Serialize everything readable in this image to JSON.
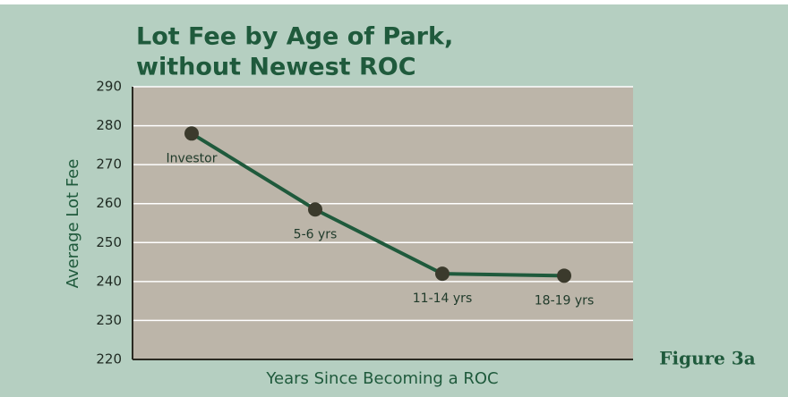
{
  "chart_data": {
    "type": "line",
    "title": [
      "Lot Fee by Age of Park,",
      "without Newest ROC"
    ],
    "x_label": "Years Since Becoming a ROC",
    "y_label": "Average Lot Fee",
    "annotation": "Figure 3a",
    "categories": [
      "Investor",
      "5-6 yrs",
      "11-14 yrs",
      "18-19 yrs"
    ],
    "series": [
      {
        "color": "#1f5a3c",
        "marker_color": "#3b3a2c",
        "values": [
          278,
          258.5,
          242,
          241.5
        ]
      }
    ],
    "ylim": [
      220,
      290
    ],
    "yticks": [
      220,
      230,
      240,
      250,
      260,
      270,
      280,
      290
    ],
    "grid": true
  }
}
